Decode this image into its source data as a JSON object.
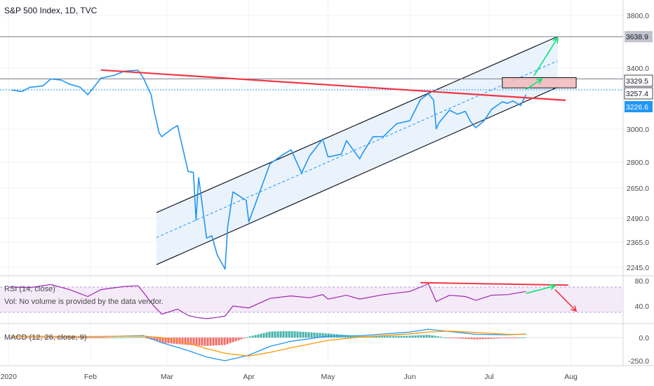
{
  "header": {
    "title": "S&P 500 Index, 1D, TVC",
    "rsi_label": "RSI (14, close)",
    "vol_label": "Vol: No volume is provided by the data vendor.",
    "macd_label": "MACD (12, 26, close, 9)"
  },
  "colors": {
    "price_line": "#2196f3",
    "trend_red": "#f23645",
    "arrow_green": "#00e676",
    "channel_fill": "#e3effb",
    "rsi_line": "#9c27b0",
    "rsi_band": "#f3e5f5",
    "macd_line": "#2196f3",
    "signal_line": "#ff9800",
    "hist_up": "#26a69a",
    "hist_down": "#ef5350",
    "last_price_bg": "#2196f3",
    "target_box": "#f2b8b8"
  },
  "chart_data": {
    "type": "line",
    "title": "S&P 500 Index, 1D, TVC",
    "x_ticks": [
      "2020",
      "Feb",
      "Mar",
      "Apr",
      "May",
      "Jun",
      "Jul",
      "Aug"
    ],
    "y_ticks": [
      "3800.0",
      "3400.0",
      "3000.0",
      "2800.0",
      "2650.0",
      "2490.0",
      "2365.0",
      "2245.0"
    ],
    "price_labels": [
      "3638.9",
      "3329.5",
      "3257.4",
      "3226.6"
    ],
    "last_price": 3226.6,
    "levels": [
      3638.9,
      3329.5,
      3257.4
    ],
    "series": [
      {
        "values": [
          [
            "2020-01-02",
            3257
          ],
          [
            "2020-01-06",
            3246
          ],
          [
            "2020-01-09",
            3274
          ],
          [
            "2020-01-14",
            3283
          ],
          [
            "2020-01-17",
            3329
          ],
          [
            "2020-01-21",
            3321
          ],
          [
            "2020-01-24",
            3295
          ],
          [
            "2020-01-28",
            3276
          ],
          [
            "2020-01-31",
            3225
          ],
          [
            "2020-02-05",
            3334
          ],
          [
            "2020-02-10",
            3352
          ],
          [
            "2020-02-14",
            3380
          ],
          [
            "2020-02-19",
            3386
          ],
          [
            "2020-02-21",
            3337
          ],
          [
            "2020-02-24",
            3225
          ],
          [
            "2020-02-25",
            3128
          ],
          [
            "2020-02-27",
            2978
          ],
          [
            "2020-02-28",
            2954
          ],
          [
            "2020-03-03",
            3003
          ],
          [
            "2020-03-05",
            3023
          ],
          [
            "2020-03-09",
            2746
          ],
          [
            "2020-03-11",
            2741
          ],
          [
            "2020-03-12",
            2480
          ],
          [
            "2020-03-13",
            2711
          ],
          [
            "2020-03-16",
            2386
          ],
          [
            "2020-03-18",
            2398
          ],
          [
            "2020-03-20",
            2305
          ],
          [
            "2020-03-23",
            2237
          ],
          [
            "2020-03-24",
            2447
          ],
          [
            "2020-03-26",
            2630
          ],
          [
            "2020-03-31",
            2585
          ],
          [
            "2020-04-01",
            2471
          ],
          [
            "2020-04-06",
            2664
          ],
          [
            "2020-04-09",
            2790
          ],
          [
            "2020-04-14",
            2846
          ],
          [
            "2020-04-17",
            2875
          ],
          [
            "2020-04-21",
            2737
          ],
          [
            "2020-04-24",
            2837
          ],
          [
            "2020-04-29",
            2939
          ],
          [
            "2020-05-01",
            2831
          ],
          [
            "2020-05-06",
            2848
          ],
          [
            "2020-05-08",
            2930
          ],
          [
            "2020-05-13",
            2820
          ],
          [
            "2020-05-14",
            2852
          ],
          [
            "2020-05-18",
            2954
          ],
          [
            "2020-05-22",
            2955
          ],
          [
            "2020-05-27",
            3036
          ],
          [
            "2020-06-01",
            3055
          ],
          [
            "2020-06-05",
            3193
          ],
          [
            "2020-06-08",
            3232
          ],
          [
            "2020-06-10",
            3190
          ],
          [
            "2020-06-11",
            3002
          ],
          [
            "2020-06-12",
            3041
          ],
          [
            "2020-06-16",
            3124
          ],
          [
            "2020-06-19",
            3098
          ],
          [
            "2020-06-22",
            3117
          ],
          [
            "2020-06-24",
            3050
          ],
          [
            "2020-06-26",
            3009
          ],
          [
            "2020-06-29",
            3053
          ],
          [
            "2020-07-02",
            3130
          ],
          [
            "2020-07-06",
            3179
          ],
          [
            "2020-07-08",
            3169
          ],
          [
            "2020-07-10",
            3185
          ],
          [
            "2020-07-13",
            3155
          ],
          [
            "2020-07-15",
            3226
          ]
        ]
      }
    ],
    "rsi": {
      "label": "RSI (14, close)",
      "levels": [
        80,
        40
      ],
      "bands": [
        70,
        30
      ],
      "values": [
        [
          "2020-01-02",
          70
        ],
        [
          "2020-01-09",
          69
        ],
        [
          "2020-01-17",
          74
        ],
        [
          "2020-01-24",
          66
        ],
        [
          "2020-01-31",
          55
        ],
        [
          "2020-02-05",
          66
        ],
        [
          "2020-02-14",
          71
        ],
        [
          "2020-02-19",
          72
        ],
        [
          "2020-02-21",
          62
        ],
        [
          "2020-02-25",
          40
        ],
        [
          "2020-02-28",
          27
        ],
        [
          "2020-03-05",
          35
        ],
        [
          "2020-03-09",
          25
        ],
        [
          "2020-03-12",
          22
        ],
        [
          "2020-03-16",
          20
        ],
        [
          "2020-03-20",
          22
        ],
        [
          "2020-03-23",
          24
        ],
        [
          "2020-03-26",
          40
        ],
        [
          "2020-04-01",
          37
        ],
        [
          "2020-04-09",
          52
        ],
        [
          "2020-04-17",
          56
        ],
        [
          "2020-04-24",
          53
        ],
        [
          "2020-04-29",
          58
        ],
        [
          "2020-05-01",
          51
        ],
        [
          "2020-05-08",
          57
        ],
        [
          "2020-05-13",
          51
        ],
        [
          "2020-05-22",
          58
        ],
        [
          "2020-06-01",
          63
        ],
        [
          "2020-06-08",
          75
        ],
        [
          "2020-06-11",
          47
        ],
        [
          "2020-06-16",
          57
        ],
        [
          "2020-06-22",
          55
        ],
        [
          "2020-06-26",
          49
        ],
        [
          "2020-07-02",
          57
        ],
        [
          "2020-07-08",
          58
        ],
        [
          "2020-07-15",
          63
        ]
      ]
    },
    "macd": {
      "label": "MACD (12, 26, close, 9)",
      "ticks": [
        "0.0",
        "-250.0"
      ],
      "macd": [
        [
          "2020-01-02",
          12
        ],
        [
          "2020-02-05",
          10
        ],
        [
          "2020-02-21",
          22
        ],
        [
          "2020-02-28",
          -55
        ],
        [
          "2020-03-09",
          -140
        ],
        [
          "2020-03-16",
          -210
        ],
        [
          "2020-03-23",
          -250
        ],
        [
          "2020-04-01",
          -190
        ],
        [
          "2020-04-09",
          -95
        ],
        [
          "2020-04-17",
          -40
        ],
        [
          "2020-05-01",
          15
        ],
        [
          "2020-05-13",
          20
        ],
        [
          "2020-06-01",
          60
        ],
        [
          "2020-06-08",
          90
        ],
        [
          "2020-06-16",
          65
        ],
        [
          "2020-06-26",
          35
        ],
        [
          "2020-07-08",
          30
        ],
        [
          "2020-07-15",
          38
        ]
      ],
      "signal": [
        [
          "2020-01-02",
          14
        ],
        [
          "2020-02-05",
          12
        ],
        [
          "2020-02-21",
          16
        ],
        [
          "2020-02-28",
          0
        ],
        [
          "2020-03-09",
          -60
        ],
        [
          "2020-03-16",
          -120
        ],
        [
          "2020-03-23",
          -170
        ],
        [
          "2020-04-01",
          -200
        ],
        [
          "2020-04-09",
          -160
        ],
        [
          "2020-04-17",
          -110
        ],
        [
          "2020-05-01",
          -30
        ],
        [
          "2020-05-13",
          5
        ],
        [
          "2020-06-01",
          40
        ],
        [
          "2020-06-08",
          60
        ],
        [
          "2020-06-16",
          70
        ],
        [
          "2020-06-26",
          55
        ],
        [
          "2020-07-08",
          35
        ],
        [
          "2020-07-15",
          35
        ]
      ]
    },
    "annotations": {
      "channel_upper": [
        [
          "2020-02-26",
          2520
        ],
        [
          "2020-07-27",
          3640
        ]
      ],
      "channel_lower": [
        [
          "2020-02-26",
          2258
        ],
        [
          "2020-07-27",
          3275
        ]
      ],
      "channel_mid": [
        [
          "2020-02-26",
          2389
        ],
        [
          "2020-07-27",
          3455
        ]
      ],
      "resistance": [
        [
          "2020-02-05",
          3387
        ],
        [
          "2020-07-30",
          3189
        ]
      ],
      "target_zone": [
        [
          "2020-07-06",
          3338
        ],
        [
          "2020-08-03",
          3270
        ]
      ],
      "forecast_arrows": [
        [
          [
            "2020-07-15",
            3260
          ],
          [
            "2020-07-21",
            3329
          ]
        ],
        [
          [
            "2020-07-18",
            3350
          ],
          [
            "2020-07-27",
            3630
          ]
        ]
      ],
      "rsi_trend": [
        [
          "2020-06-05",
          77
        ],
        [
          "2020-07-31",
          73
        ]
      ],
      "rsi_arrows": [
        [
          [
            "2020-07-15",
            60
          ],
          [
            "2020-07-26",
            72
          ]
        ],
        [
          [
            "2020-07-26",
            66
          ],
          [
            "2020-08-03",
            32
          ]
        ]
      ]
    }
  }
}
